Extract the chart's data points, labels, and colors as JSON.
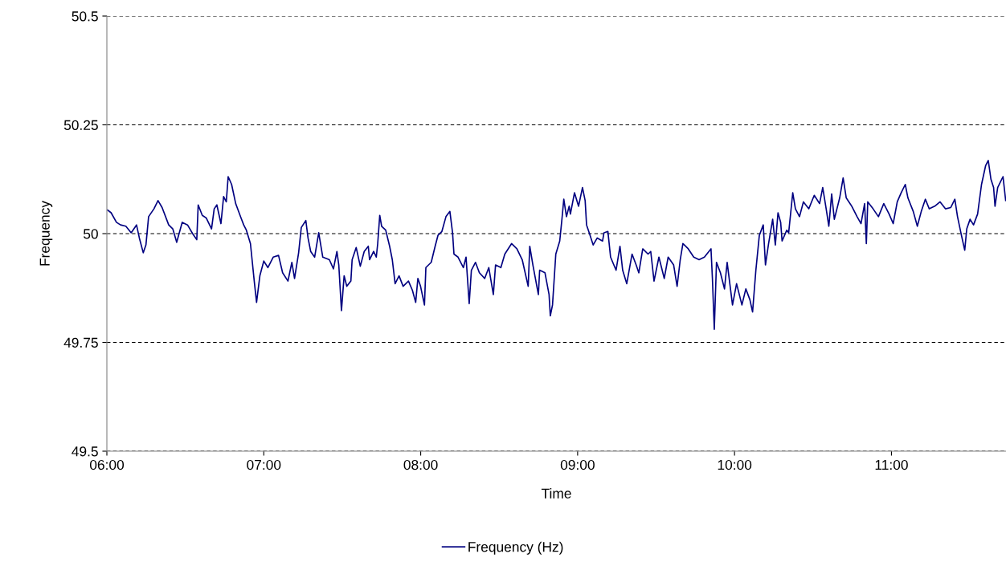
{
  "chart_data": {
    "type": "line",
    "xlabel": "Time",
    "ylabel": "Frequency",
    "xlim": [
      6,
      11.73
    ],
    "xticks": [
      {
        "value": 6,
        "label": "06:00"
      },
      {
        "value": 7,
        "label": "07:00"
      },
      {
        "value": 8,
        "label": "08:00"
      },
      {
        "value": 9,
        "label": "09:00"
      },
      {
        "value": 10,
        "label": "10:00"
      },
      {
        "value": 11,
        "label": "11:00"
      }
    ],
    "ylim": [
      49.5,
      50.5
    ],
    "yticks": [
      49.5,
      49.75,
      50,
      50.25,
      50.5
    ],
    "grid": "y",
    "legend": "bottom",
    "marker": "none",
    "line_style": "solid",
    "x": [
      6.005,
      6.027,
      6.061,
      6.087,
      6.121,
      6.155,
      6.189,
      6.207,
      6.232,
      6.249,
      6.266,
      6.3,
      6.326,
      6.352,
      6.394,
      6.42,
      6.445,
      6.48,
      6.514,
      6.548,
      6.573,
      6.582,
      6.608,
      6.633,
      6.667,
      6.684,
      6.701,
      6.727,
      6.744,
      6.761,
      6.773,
      6.795,
      6.821,
      6.855,
      6.872,
      6.889,
      6.915,
      6.94,
      6.954,
      6.975,
      7.0,
      7.026,
      7.06,
      7.094,
      7.12,
      7.154,
      7.179,
      7.196,
      7.222,
      7.239,
      7.268,
      7.282,
      7.299,
      7.324,
      7.35,
      7.376,
      7.418,
      7.444,
      7.466,
      7.478,
      7.495,
      7.512,
      7.529,
      7.555,
      7.563,
      7.589,
      7.615,
      7.64,
      7.666,
      7.674,
      7.7,
      7.717,
      7.726,
      7.739,
      7.751,
      7.777,
      7.802,
      7.819,
      7.837,
      7.862,
      7.888,
      7.922,
      7.947,
      7.968,
      7.982,
      7.999,
      8.024,
      8.033,
      8.067,
      8.092,
      8.11,
      8.135,
      8.161,
      8.186,
      8.203,
      8.212,
      8.238,
      8.272,
      8.289,
      8.309,
      8.323,
      8.349,
      8.374,
      8.408,
      8.434,
      8.463,
      8.477,
      8.511,
      8.536,
      8.579,
      8.613,
      8.647,
      8.685,
      8.695,
      8.715,
      8.75,
      8.758,
      8.792,
      8.818,
      8.826,
      8.84,
      8.861,
      8.886,
      8.9,
      8.912,
      8.929,
      8.946,
      8.954,
      8.98,
      9.006,
      9.031,
      9.048,
      9.057,
      9.074,
      9.099,
      9.125,
      9.159,
      9.168,
      9.193,
      9.21,
      9.245,
      9.27,
      9.287,
      9.313,
      9.347,
      9.373,
      9.39,
      9.415,
      9.449,
      9.466,
      9.487,
      9.518,
      9.552,
      9.577,
      9.612,
      9.634,
      9.654,
      9.671,
      9.705,
      9.74,
      9.774,
      9.808,
      9.85,
      9.859,
      9.871,
      9.885,
      9.91,
      9.936,
      9.953,
      9.987,
      10.013,
      10.047,
      10.072,
      10.098,
      10.115,
      10.136,
      10.158,
      10.183,
      10.197,
      10.217,
      10.243,
      10.26,
      10.277,
      10.294,
      10.303,
      10.333,
      10.345,
      10.371,
      10.388,
      10.414,
      10.439,
      10.473,
      10.508,
      10.542,
      10.562,
      10.584,
      10.601,
      10.619,
      10.636,
      10.67,
      10.692,
      10.712,
      10.747,
      10.781,
      10.806,
      10.829,
      10.84,
      10.849,
      10.883,
      10.917,
      10.951,
      10.985,
      11.011,
      11.037,
      11.062,
      11.088,
      11.105,
      11.139,
      11.165,
      11.19,
      11.216,
      11.241,
      11.276,
      11.31,
      11.344,
      11.378,
      11.404,
      11.421,
      11.446,
      11.467,
      11.48,
      11.501,
      11.523,
      11.549,
      11.574,
      11.6,
      11.617,
      11.634,
      11.651,
      11.66,
      11.677,
      11.711,
      11.728
    ],
    "series": [
      {
        "name": "Frequency (Hz)",
        "color": "#000080",
        "values": [
          50.054,
          50.048,
          50.026,
          50.02,
          50.017,
          50.002,
          50.02,
          49.99,
          49.956,
          49.974,
          50.039,
          50.057,
          50.076,
          50.06,
          50.02,
          50.011,
          49.98,
          50.026,
          50.02,
          49.999,
          49.986,
          50.066,
          50.042,
          50.036,
          50.011,
          50.057,
          50.066,
          50.023,
          50.085,
          50.073,
          50.131,
          50.113,
          50.069,
          50.036,
          50.02,
          50.008,
          49.977,
          49.888,
          49.842,
          49.903,
          49.937,
          49.922,
          49.946,
          49.95,
          49.91,
          49.891,
          49.934,
          49.897,
          49.956,
          50.014,
          50.03,
          49.99,
          49.959,
          49.946,
          50.002,
          49.946,
          49.94,
          49.919,
          49.959,
          49.928,
          49.823,
          49.903,
          49.879,
          49.891,
          49.94,
          49.968,
          49.925,
          49.959,
          49.971,
          49.94,
          49.959,
          49.946,
          49.977,
          50.042,
          50.017,
          50.008,
          49.971,
          49.94,
          49.885,
          49.903,
          49.879,
          49.891,
          49.87,
          49.842,
          49.897,
          49.879,
          49.836,
          49.922,
          49.934,
          49.971,
          49.996,
          50.005,
          50.039,
          50.051,
          50.002,
          49.953,
          49.946,
          49.922,
          49.946,
          49.839,
          49.916,
          49.934,
          49.91,
          49.897,
          49.922,
          49.86,
          49.928,
          49.922,
          49.953,
          49.977,
          49.965,
          49.94,
          49.879,
          49.971,
          49.928,
          49.86,
          49.916,
          49.91,
          49.86,
          49.811,
          49.836,
          49.953,
          49.983,
          50.033,
          50.079,
          50.039,
          50.063,
          50.045,
          50.094,
          50.063,
          50.106,
          50.076,
          50.02,
          50.002,
          49.974,
          49.99,
          49.983,
          50.002,
          50.005,
          49.946,
          49.916,
          49.971,
          49.916,
          49.885,
          49.953,
          49.928,
          49.91,
          49.965,
          49.953,
          49.959,
          49.891,
          49.946,
          49.897,
          49.946,
          49.928,
          49.879,
          49.94,
          49.977,
          49.965,
          49.946,
          49.94,
          49.946,
          49.965,
          49.897,
          49.78,
          49.934,
          49.91,
          49.873,
          49.934,
          49.836,
          49.885,
          49.836,
          49.873,
          49.848,
          49.82,
          49.916,
          49.996,
          50.02,
          49.928,
          49.977,
          50.033,
          49.974,
          50.048,
          50.026,
          49.983,
          50.008,
          50.002,
          50.094,
          50.057,
          50.039,
          50.073,
          50.057,
          50.088,
          50.069,
          50.106,
          50.057,
          50.017,
          50.091,
          50.033,
          50.082,
          50.128,
          50.082,
          50.063,
          50.039,
          50.023,
          50.069,
          49.977,
          50.073,
          50.057,
          50.039,
          50.069,
          50.045,
          50.023,
          50.073,
          50.094,
          50.113,
          50.082,
          50.051,
          50.017,
          50.051,
          50.079,
          50.057,
          50.063,
          50.073,
          50.057,
          50.06,
          50.079,
          50.039,
          49.996,
          49.962,
          50.011,
          50.033,
          50.02,
          50.045,
          50.113,
          50.156,
          50.168,
          50.125,
          50.106,
          50.063,
          50.106,
          50.131,
          50.076
        ]
      }
    ]
  }
}
